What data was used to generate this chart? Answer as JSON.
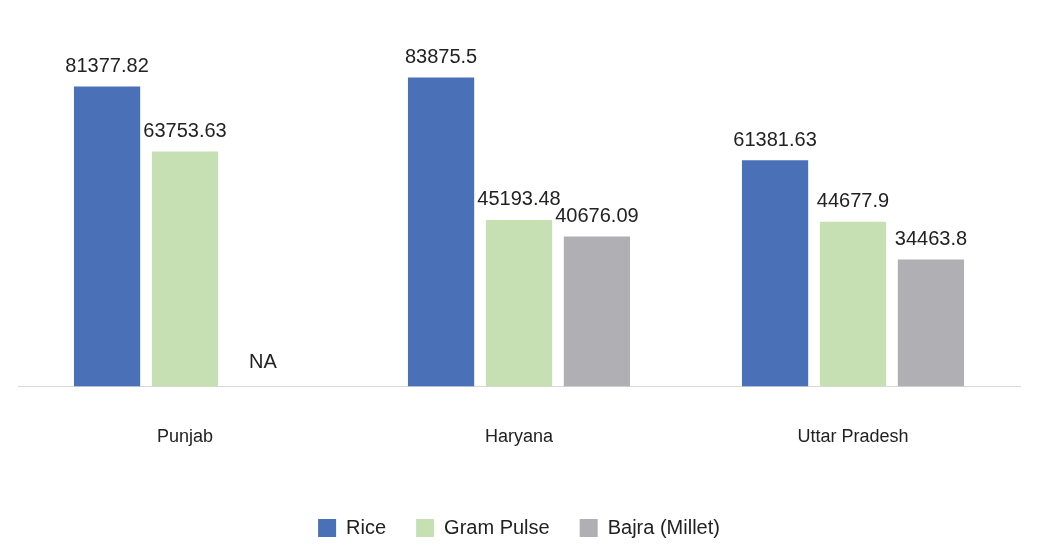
{
  "chart_data": {
    "type": "bar",
    "categories": [
      "Punjab",
      "Haryana",
      "Uttar Pradesh"
    ],
    "series": [
      {
        "name": "Rice",
        "color": "#4a70b8",
        "values": [
          81377.82,
          83875.5,
          61381.63
        ],
        "value_labels": [
          "81377.82",
          "83875.5",
          "61381.63"
        ]
      },
      {
        "name": "Gram Pulse",
        "color": "#c6e0b4",
        "values": [
          63753.63,
          45193.48,
          44677.9
        ],
        "value_labels": [
          "63753.63",
          "45193.48",
          "44677.9"
        ]
      },
      {
        "name": "Bajra (Millet)",
        "color": "#b0b0b4",
        "values": [
          null,
          40676.09,
          34463.8
        ],
        "value_labels": [
          "NA",
          "40676.09",
          "34463.8"
        ]
      }
    ],
    "grid": false,
    "legend": "bottom"
  }
}
